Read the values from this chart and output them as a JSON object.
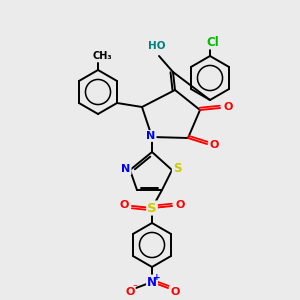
{
  "bg_color": "#ebebeb",
  "bond_color": "#000000",
  "atom_colors": {
    "O": "#ff0000",
    "N": "#0000ff",
    "S": "#cccc00",
    "Cl": "#00bb00",
    "HO": "#008080",
    "C": "#000000"
  },
  "font_size": 7.5,
  "line_width": 1.4,
  "ring_r": 22
}
